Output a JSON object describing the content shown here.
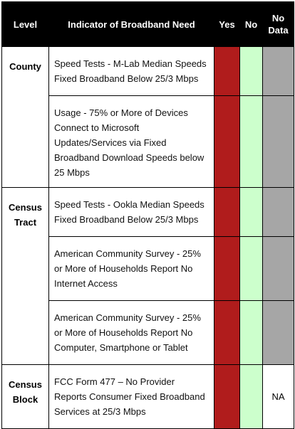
{
  "header": {
    "level": "Level",
    "indicator": "Indicator of Broadband Need",
    "yes": "Yes",
    "no": "No",
    "no_data": "No Data"
  },
  "rows": [
    {
      "level": "County",
      "indicator": "Speed Tests - M-Lab Median Speeds Fixed Broadband Below 25/3 Mbps",
      "no_data": ""
    },
    {
      "level": "",
      "indicator": "Usage - 75% or More of Devices Connect to Microsoft Updates/Services via Fixed Broadband Download Speeds below 25 Mbps",
      "no_data": ""
    },
    {
      "level": "Census Tract",
      "indicator": "Speed Tests - Ookla Median Speeds Fixed Broadband Below 25/3 Mbps",
      "no_data": ""
    },
    {
      "level": "",
      "indicator": "American Community Survey - 25% or More of Households Report No Internet Access",
      "no_data": ""
    },
    {
      "level": "",
      "indicator": "American Community Survey - 25% or More of Households Report No Computer, Smartphone or Tablet",
      "no_data": ""
    },
    {
      "level": "Census Block",
      "indicator": "FCC Form 477 – No Provider Reports Consumer Fixed Broadband Services at 25/3 Mbps",
      "no_data": "NA"
    }
  ],
  "colors": {
    "yes": "#b01c1c",
    "no": "#ccffcc",
    "no_data": "#a6a6a6",
    "header_bg": "#000000"
  }
}
